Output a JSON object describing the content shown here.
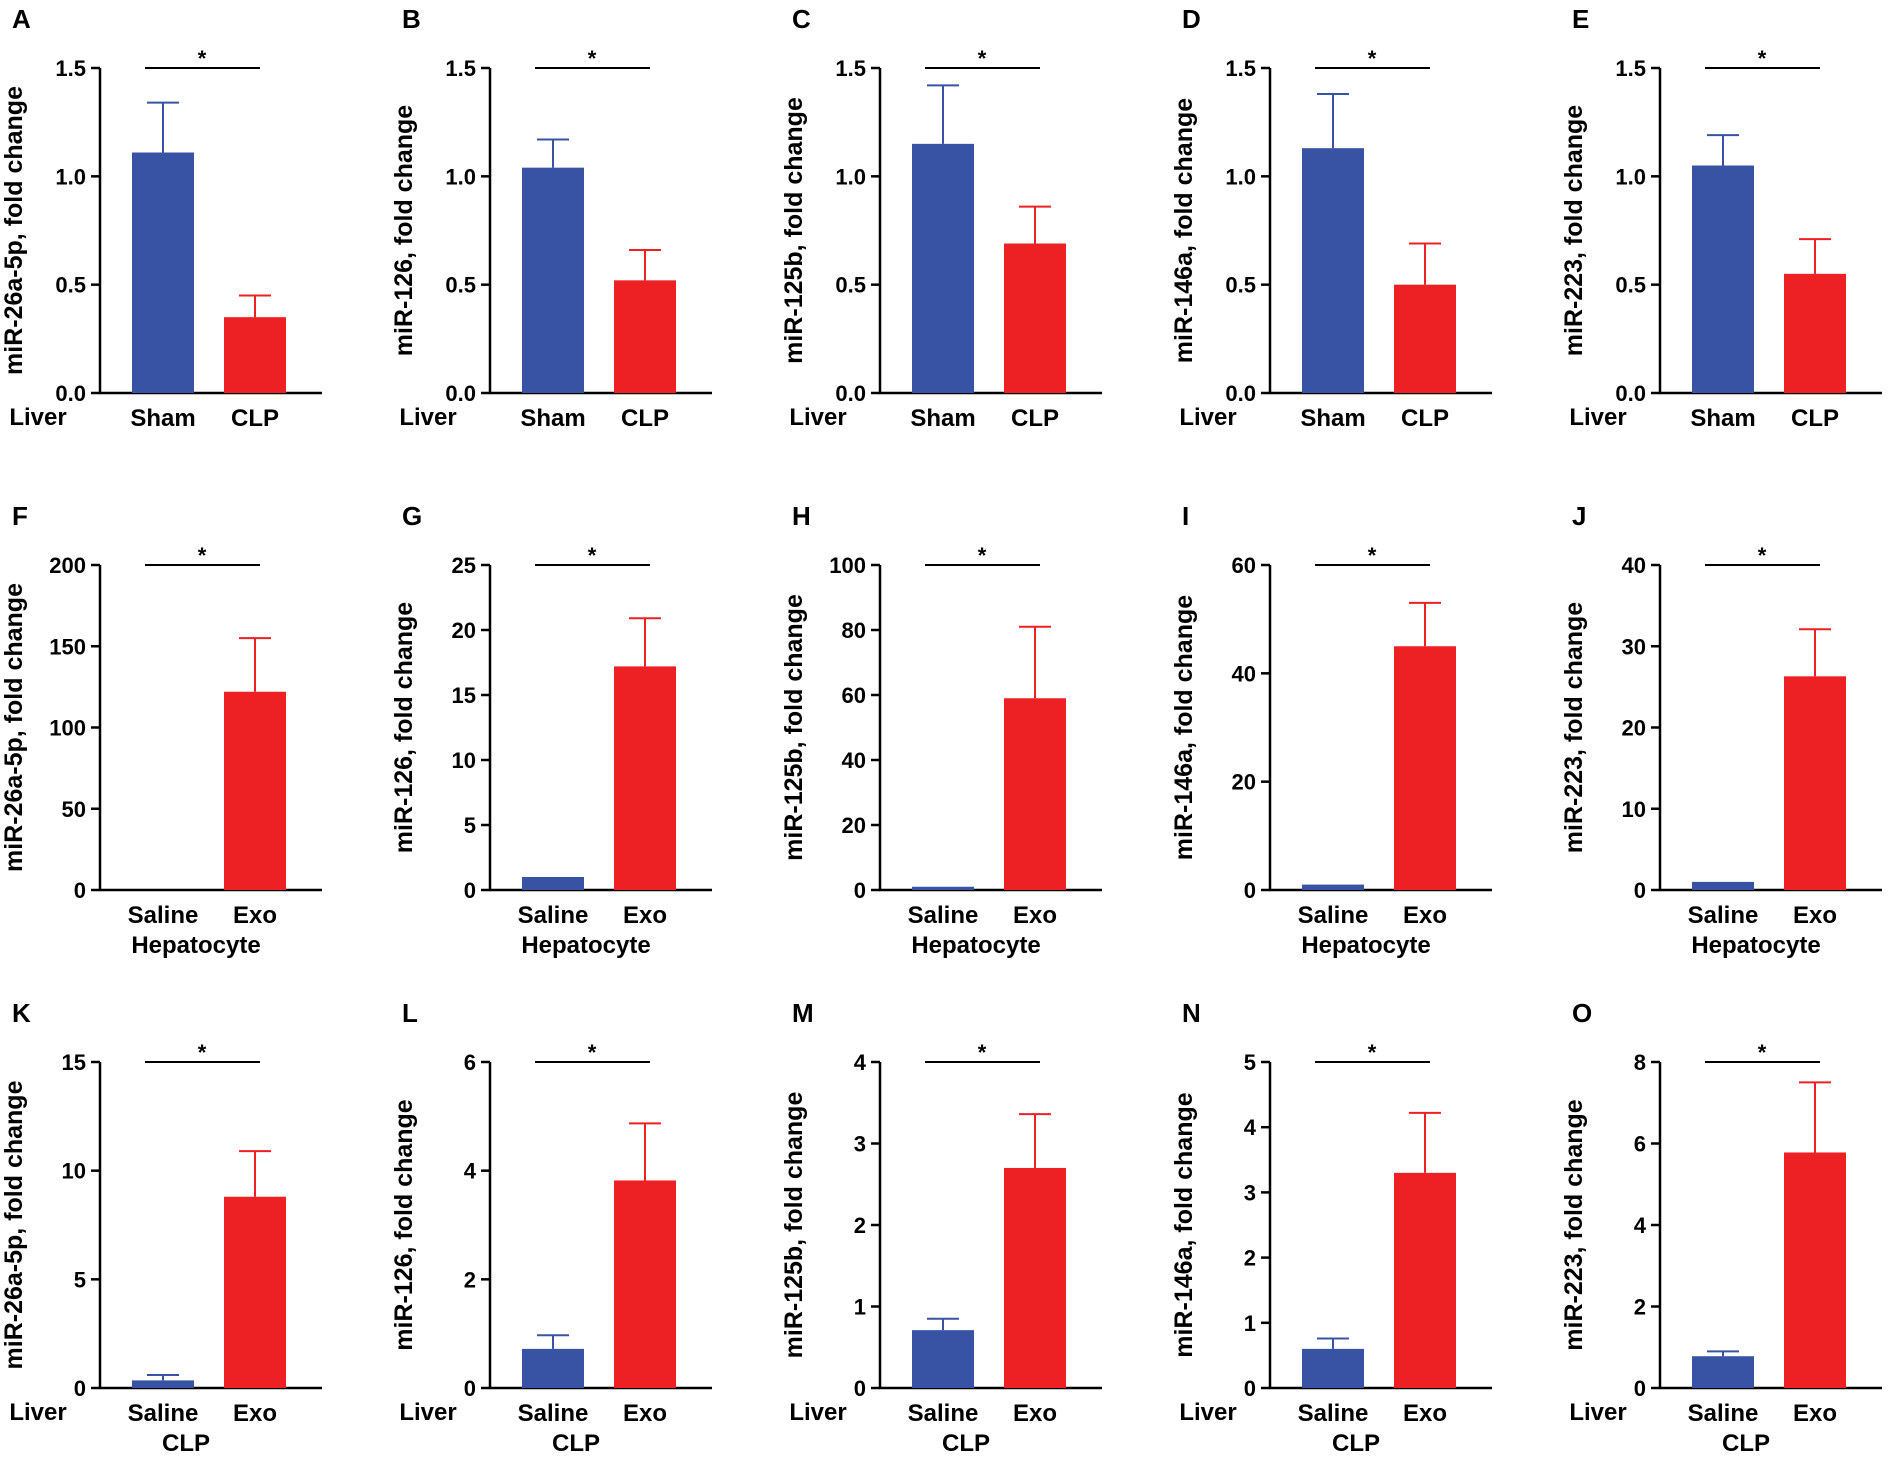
{
  "colors": {
    "sham_saline": "#3953A4",
    "treatment": "#ED2024",
    "axis": "#000000"
  },
  "chart_data": [
    {
      "panel": "A",
      "type": "bar",
      "ylabel": "miR-26a-5p, fold change",
      "categories": [
        "Sham",
        "CLP"
      ],
      "values": [
        1.11,
        0.35
      ],
      "errors": [
        0.23,
        0.1
      ],
      "ylim": [
        0,
        1.5
      ],
      "yticks": [
        "0.0",
        "0.5",
        "1.0",
        "1.5"
      ],
      "group_label": "Liver",
      "group_position": "left",
      "significance": "*"
    },
    {
      "panel": "B",
      "type": "bar",
      "ylabel": "miR-126, fold change",
      "categories": [
        "Sham",
        "CLP"
      ],
      "values": [
        1.04,
        0.52
      ],
      "errors": [
        0.13,
        0.14
      ],
      "ylim": [
        0,
        1.5
      ],
      "yticks": [
        "0.0",
        "0.5",
        "1.0",
        "1.5"
      ],
      "group_label": "Liver",
      "group_position": "left",
      "significance": "*"
    },
    {
      "panel": "C",
      "type": "bar",
      "ylabel": "miR-125b, fold change",
      "categories": [
        "Sham",
        "CLP"
      ],
      "values": [
        1.15,
        0.69
      ],
      "errors": [
        0.27,
        0.17
      ],
      "ylim": [
        0,
        1.5
      ],
      "yticks": [
        "0.0",
        "0.5",
        "1.0",
        "1.5"
      ],
      "group_label": "Liver",
      "group_position": "left",
      "significance": "*"
    },
    {
      "panel": "D",
      "type": "bar",
      "ylabel": "miR-146a, fold change",
      "categories": [
        "Sham",
        "CLP"
      ],
      "values": [
        1.13,
        0.5
      ],
      "errors": [
        0.25,
        0.19
      ],
      "ylim": [
        0,
        1.5
      ],
      "yticks": [
        "0.0",
        "0.5",
        "1.0",
        "1.5"
      ],
      "group_label": "Liver",
      "group_position": "left",
      "significance": "*"
    },
    {
      "panel": "E",
      "type": "bar",
      "ylabel": "miR-223, fold change",
      "categories": [
        "Sham",
        "CLP"
      ],
      "values": [
        1.05,
        0.55
      ],
      "errors": [
        0.14,
        0.16
      ],
      "ylim": [
        0,
        1.5
      ],
      "yticks": [
        "0.0",
        "0.5",
        "1.0",
        "1.5"
      ],
      "group_label": "Liver",
      "group_position": "left",
      "significance": "*"
    },
    {
      "panel": "F",
      "type": "bar",
      "ylabel": "miR-26a-5p, fold change",
      "categories": [
        "Saline",
        "Exo"
      ],
      "values": [
        0,
        122
      ],
      "errors": [
        0,
        33
      ],
      "ylim": [
        0,
        200
      ],
      "yticks": [
        "0",
        "50",
        "100",
        "150",
        "200"
      ],
      "group_label": "Hepatocyte",
      "group_position": "below",
      "significance": "*"
    },
    {
      "panel": "G",
      "type": "bar",
      "ylabel": "miR-126, fold change",
      "categories": [
        "Saline",
        "Exo"
      ],
      "values": [
        1.0,
        17.2
      ],
      "errors": [
        0,
        3.7
      ],
      "ylim": [
        0,
        25
      ],
      "yticks": [
        "0",
        "5",
        "10",
        "15",
        "20",
        "25"
      ],
      "group_label": "Hepatocyte",
      "group_position": "below",
      "significance": "*"
    },
    {
      "panel": "H",
      "type": "bar",
      "ylabel": "miR-125b, fold change",
      "categories": [
        "Saline",
        "Exo"
      ],
      "values": [
        1.0,
        59
      ],
      "errors": [
        0,
        22
      ],
      "ylim": [
        0,
        100
      ],
      "yticks": [
        "0",
        "20",
        "40",
        "60",
        "80",
        "100"
      ],
      "group_label": "Hepatocyte",
      "group_position": "below",
      "significance": "*"
    },
    {
      "panel": "I",
      "type": "bar",
      "ylabel": "miR-146a, fold change",
      "categories": [
        "Saline",
        "Exo"
      ],
      "values": [
        1.0,
        45
      ],
      "errors": [
        0,
        8
      ],
      "ylim": [
        0,
        60
      ],
      "yticks": [
        "0",
        "20",
        "40",
        "60"
      ],
      "group_label": "Hepatocyte",
      "group_position": "below",
      "significance": "*"
    },
    {
      "panel": "J",
      "type": "bar",
      "ylabel": "miR-223, fold change",
      "categories": [
        "Saline",
        "Exo"
      ],
      "values": [
        1.0,
        26.3
      ],
      "errors": [
        0,
        5.8
      ],
      "ylim": [
        0,
        40
      ],
      "yticks": [
        "0",
        "10",
        "20",
        "30",
        "40"
      ],
      "group_label": "Hepatocyte",
      "group_position": "below",
      "significance": "*"
    },
    {
      "panel": "K",
      "type": "bar",
      "ylabel": "miR-26a-5p, fold change",
      "categories": [
        "Saline",
        "Exo"
      ],
      "values": [
        0.35,
        8.8
      ],
      "errors": [
        0.25,
        2.1
      ],
      "ylim": [
        0,
        15
      ],
      "yticks": [
        "0",
        "5",
        "10",
        "15"
      ],
      "group_label": "Liver",
      "group_position": "left",
      "group_label2": "CLP",
      "significance": "*"
    },
    {
      "panel": "L",
      "type": "bar",
      "ylabel": "miR-126, fold change",
      "categories": [
        "Saline",
        "Exo"
      ],
      "values": [
        0.72,
        3.82
      ],
      "errors": [
        0.25,
        1.05
      ],
      "ylim": [
        0,
        6
      ],
      "yticks": [
        "0",
        "2",
        "4",
        "6"
      ],
      "group_label": "Liver",
      "group_position": "left",
      "group_label2": "CLP",
      "significance": "*"
    },
    {
      "panel": "M",
      "type": "bar",
      "ylabel": "miR-125b, fold change",
      "categories": [
        "Saline",
        "Exo"
      ],
      "values": [
        0.71,
        2.7
      ],
      "errors": [
        0.14,
        0.66
      ],
      "ylim": [
        0,
        4
      ],
      "yticks": [
        "0",
        "1",
        "2",
        "3",
        "4"
      ],
      "group_label": "Liver",
      "group_position": "left",
      "group_label2": "CLP",
      "significance": "*"
    },
    {
      "panel": "N",
      "type": "bar",
      "ylabel": "miR-146a, fold change",
      "categories": [
        "Saline",
        "Exo"
      ],
      "values": [
        0.6,
        3.3
      ],
      "errors": [
        0.16,
        0.92
      ],
      "ylim": [
        0,
        5
      ],
      "yticks": [
        "0",
        "1",
        "2",
        "3",
        "4",
        "5"
      ],
      "group_label": "Liver",
      "group_position": "left",
      "group_label2": "CLP",
      "significance": "*"
    },
    {
      "panel": "O",
      "type": "bar",
      "ylabel": "miR-223, fold change",
      "categories": [
        "Saline",
        "Exo"
      ],
      "values": [
        0.78,
        5.78
      ],
      "errors": [
        0.12,
        1.72
      ],
      "ylim": [
        0,
        8
      ],
      "yticks": [
        "0",
        "2",
        "4",
        "6",
        "8"
      ],
      "group_label": "Liver",
      "group_position": "left",
      "group_label2": "CLP",
      "significance": "*"
    }
  ]
}
